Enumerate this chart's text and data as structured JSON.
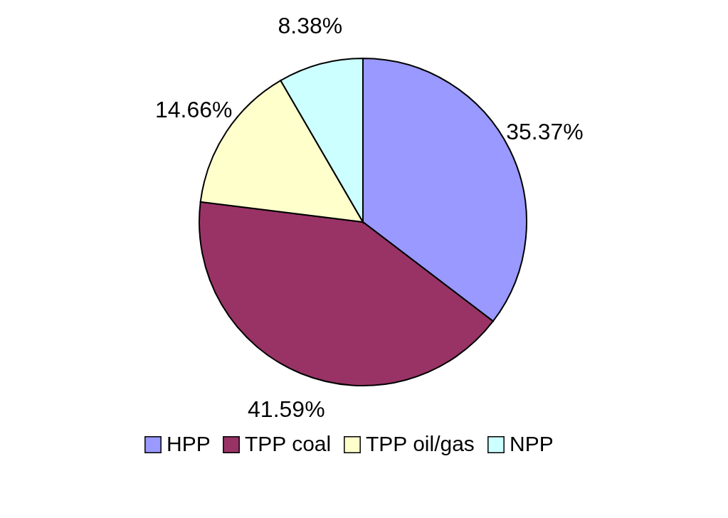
{
  "chart_data": {
    "type": "pie",
    "categories": [
      "HPP",
      "TPP coal",
      "TPP oil/gas",
      "NPP"
    ],
    "values": [
      35.37,
      41.59,
      14.66,
      8.38
    ],
    "value_labels": [
      "35.37%",
      "41.59%",
      "14.66%",
      "8.38%"
    ],
    "colors": [
      "#9999ff",
      "#993366",
      "#ffffcc",
      "#ccffff"
    ],
    "legend": "bottom"
  }
}
